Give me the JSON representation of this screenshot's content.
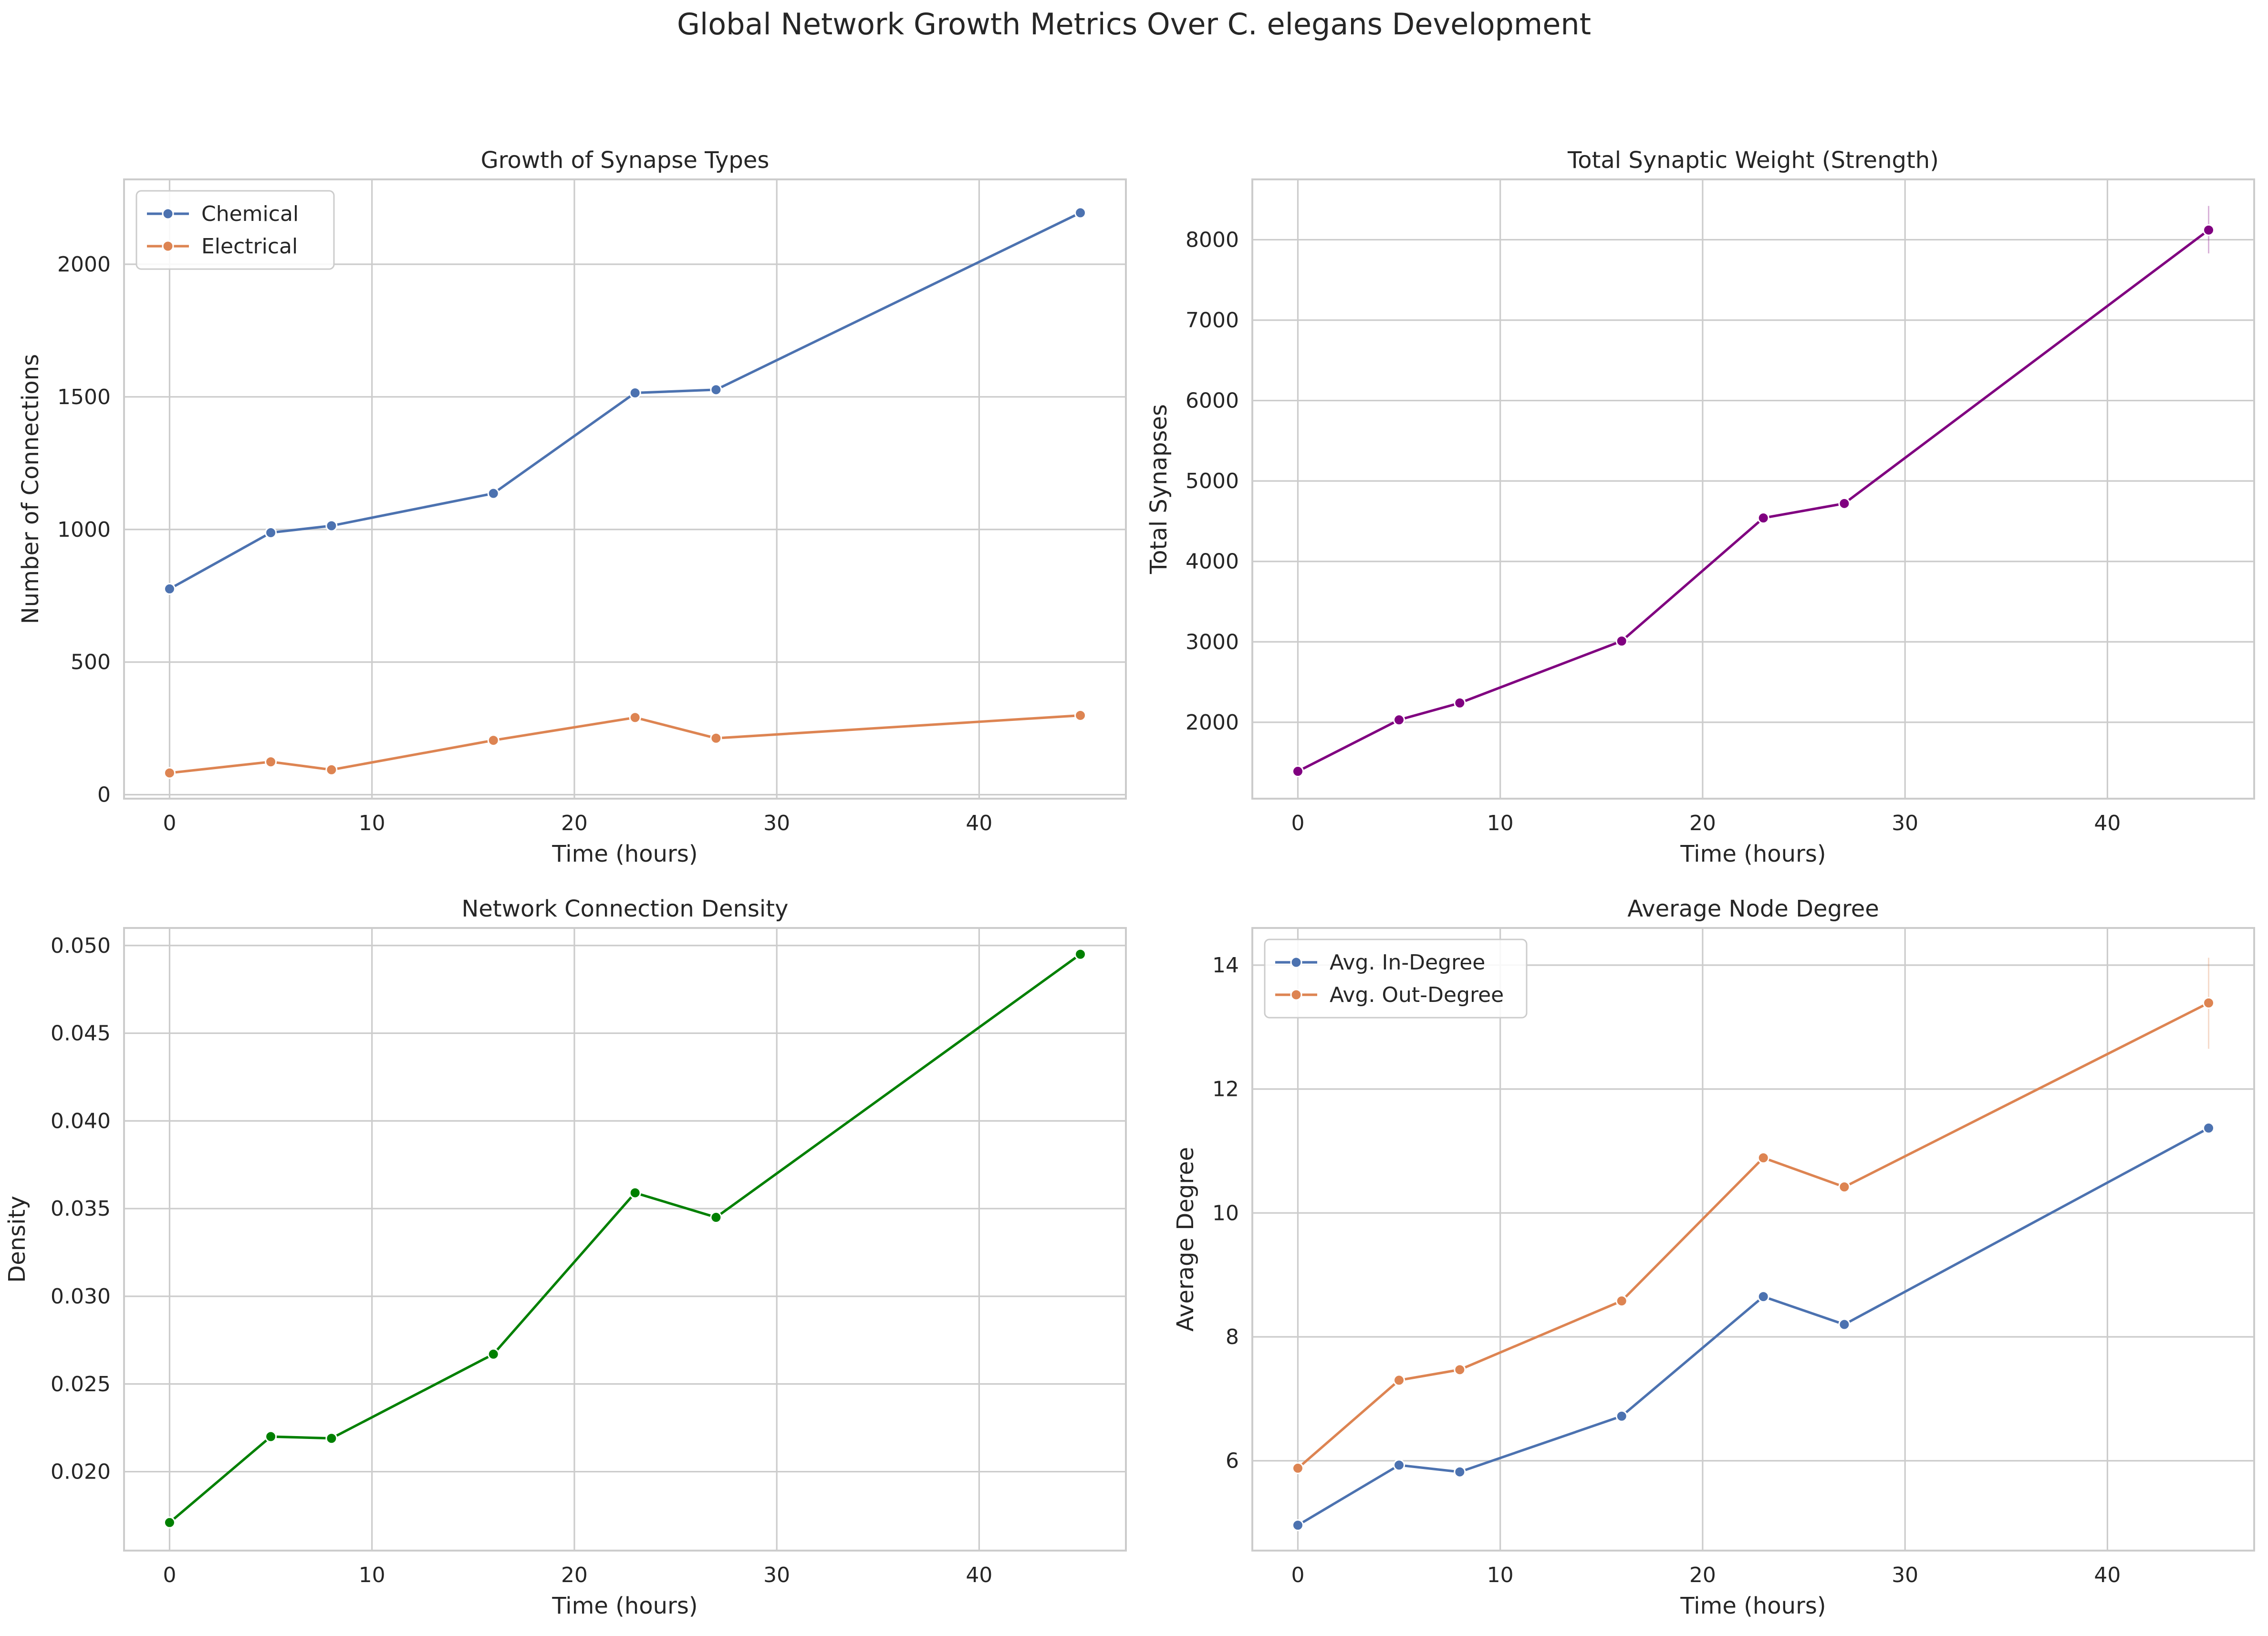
{
  "figure": {
    "title": "Global Network Growth Metrics Over C. elegans Development"
  },
  "colors": {
    "chemical": "#4c72b0",
    "electrical": "#dd8452",
    "weight": "#800080",
    "density": "#008000",
    "in_degree": "#4c72b0",
    "out_degree": "#dd8452",
    "grid": "#cccccc",
    "spine": "#cccccc",
    "text": "#262626"
  },
  "chart_data": [
    {
      "type": "line",
      "title": "Growth of Synapse Types",
      "xlabel": "Time (hours)",
      "ylabel": "Number of Connections",
      "x": [
        0,
        5,
        8,
        16,
        23,
        27,
        45
      ],
      "xlim": [
        -2.25,
        47.25
      ],
      "ylim": [
        -15,
        2320
      ],
      "xticks": [
        0,
        10,
        20,
        30,
        40
      ],
      "yticks": [
        0,
        500,
        1000,
        1500,
        2000
      ],
      "grid": true,
      "legend": "top-left",
      "series": [
        {
          "name": "Chemical",
          "color": "#4c72b0",
          "values": [
            776,
            988,
            1014,
            1136,
            1515,
            1527,
            2194
          ]
        },
        {
          "name": "Electrical",
          "color": "#dd8452",
          "values": [
            82,
            124,
            94,
            205,
            291,
            213,
            299
          ]
        }
      ]
    },
    {
      "type": "line",
      "title": "Total Synaptic Weight (Strength)",
      "xlabel": "Time (hours)",
      "ylabel": "Total Synapses",
      "x": [
        0,
        5,
        8,
        16,
        23,
        27,
        45
      ],
      "xlim": [
        -2.25,
        47.25
      ],
      "ylim": [
        1050,
        8750
      ],
      "xticks": [
        0,
        10,
        20,
        30,
        40
      ],
      "yticks": [
        2000,
        3000,
        4000,
        5000,
        6000,
        7000,
        8000
      ],
      "grid": true,
      "legend": "none",
      "series": [
        {
          "color": "#800080",
          "values": [
            1390,
            2030,
            2240,
            3010,
            4540,
            4720,
            8120
          ],
          "error_last": [
            7830,
            8420
          ]
        }
      ]
    },
    {
      "type": "line",
      "title": "Network Connection Density",
      "xlabel": "Time (hours)",
      "ylabel": "Density",
      "x": [
        0,
        5,
        8,
        16,
        23,
        27,
        45
      ],
      "xlim": [
        -2.25,
        47.25
      ],
      "ylim": [
        0.0155,
        0.051
      ],
      "xticks": [
        0,
        10,
        20,
        30,
        40
      ],
      "yticks": [
        0.02,
        0.025,
        0.03,
        0.035,
        0.04,
        0.045,
        0.05
      ],
      "ytick_labels": [
        "0.020",
        "0.025",
        "0.030",
        "0.035",
        "0.040",
        "0.045",
        "0.050"
      ],
      "grid": true,
      "legend": "none",
      "series": [
        {
          "color": "#008000",
          "values": [
            0.0171,
            0.022,
            0.0219,
            0.0267,
            0.0359,
            0.0345,
            0.0495
          ]
        }
      ]
    },
    {
      "type": "line",
      "title": "Average Node Degree",
      "xlabel": "Time (hours)",
      "ylabel": "Average Degree",
      "x": [
        0,
        5,
        8,
        16,
        23,
        27,
        45
      ],
      "xlim": [
        -2.25,
        47.25
      ],
      "ylim": [
        4.55,
        14.6
      ],
      "xticks": [
        0,
        10,
        20,
        30,
        40
      ],
      "yticks": [
        6,
        8,
        10,
        12,
        14
      ],
      "grid": true,
      "legend": "top-left",
      "series": [
        {
          "name": "Avg. In-Degree",
          "color": "#4c72b0",
          "values": [
            4.96,
            5.93,
            5.82,
            6.72,
            8.65,
            8.2,
            11.37
          ]
        },
        {
          "name": "Avg. Out-Degree",
          "color": "#dd8452",
          "values": [
            5.88,
            7.3,
            7.47,
            8.58,
            10.89,
            10.42,
            13.39
          ],
          "error_last": [
            12.65,
            14.12
          ]
        }
      ]
    }
  ]
}
